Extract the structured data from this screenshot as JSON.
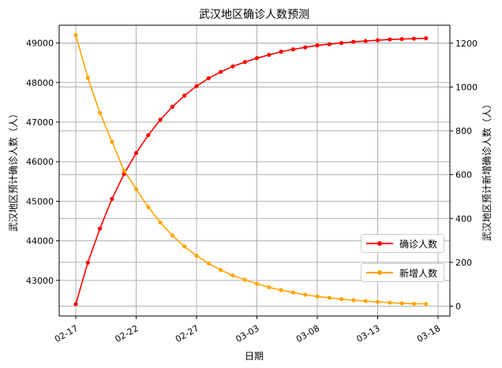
{
  "chart_data": {
    "type": "line",
    "title": "武汉地区确诊人数预测",
    "xlabel": "日期",
    "ylabel_left": "武汉地区预计确诊人数（人）",
    "ylabel_right": "武汉地区预计新增确诊人数（人）",
    "x_tick_labels": [
      "02-17",
      "02-22",
      "02-27",
      "03-03",
      "03-08",
      "03-13",
      "03-18"
    ],
    "ylim_left": [
      42100,
      49450
    ],
    "ylim_right": [
      -45,
      1282
    ],
    "y_ticks_left": [
      43000,
      44000,
      45000,
      46000,
      47000,
      48000,
      49000
    ],
    "y_ticks_right": [
      0,
      200,
      400,
      600,
      800,
      1000,
      1200
    ],
    "grid": true,
    "legend_placement": "lower-right",
    "x": [
      "02-17",
      "02-18",
      "02-19",
      "02-20",
      "02-21",
      "02-22",
      "02-23",
      "02-24",
      "02-25",
      "02-26",
      "02-27",
      "02-28",
      "02-29",
      "03-01",
      "03-02",
      "03-03",
      "03-04",
      "03-05",
      "03-06",
      "03-07",
      "03-08",
      "03-09",
      "03-10",
      "03-11",
      "03-12",
      "03-13",
      "03-14",
      "03-15",
      "03-16",
      "03-17"
    ],
    "series": [
      {
        "name": "确诊人数",
        "axis": "left",
        "color": "#ff0000",
        "values": [
          42400,
          43450,
          44310,
          45060,
          45690,
          46220,
          46670,
          47060,
          47390,
          47670,
          47910,
          48110,
          48270,
          48410,
          48520,
          48620,
          48700,
          48780,
          48840,
          48890,
          48940,
          48970,
          49000,
          49030,
          49050,
          49070,
          49090,
          49100,
          49110,
          49120
        ]
      },
      {
        "name": "新增人数",
        "axis": "right",
        "color": "#ffa500",
        "values": [
          1237,
          1042,
          882,
          750,
          618,
          534,
          452,
          382,
          322,
          272,
          230,
          195,
          165,
          140,
          120,
          102,
          86,
          73,
          62,
          52,
          44,
          38,
          32,
          27,
          23,
          19,
          16,
          13,
          11,
          10
        ]
      }
    ]
  }
}
